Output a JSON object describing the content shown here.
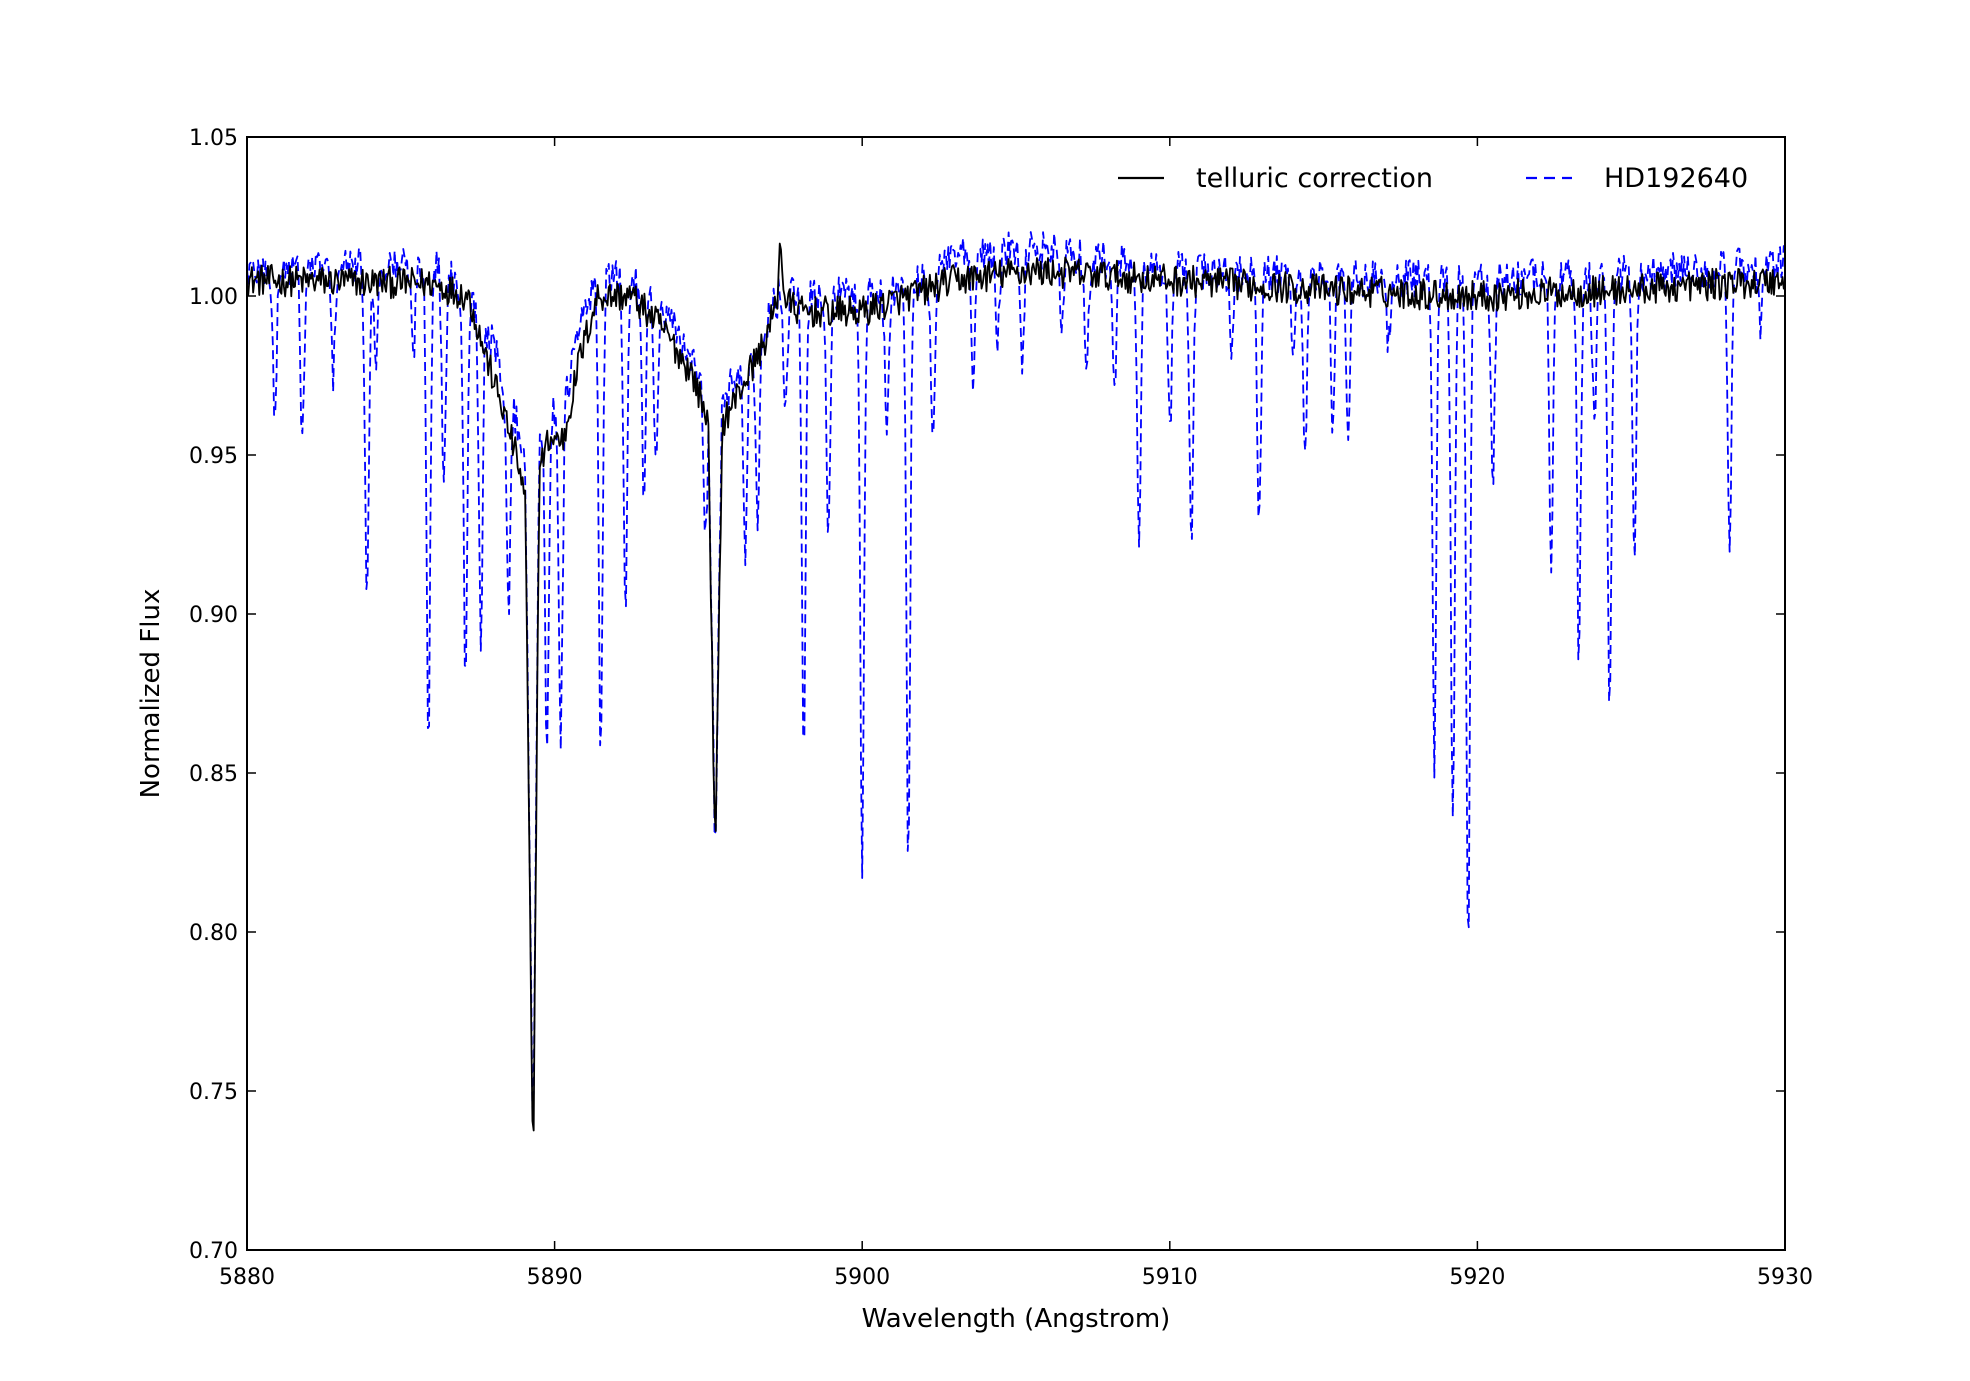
{
  "chart_data": {
    "type": "line",
    "title": "",
    "xlabel": "Wavelength (Angstrom)",
    "ylabel": "Normalized Flux",
    "xlim": [
      5880,
      5930
    ],
    "ylim": [
      0.7,
      1.05
    ],
    "xticks": [
      5880,
      5890,
      5900,
      5910,
      5920,
      5930
    ],
    "xtick_labels": [
      "5880",
      "5890",
      "5900",
      "5910",
      "5920",
      "5930"
    ],
    "yticks": [
      0.7,
      0.75,
      0.8,
      0.85,
      0.9,
      0.95,
      1.0,
      1.05
    ],
    "ytick_labels": [
      "0.70",
      "0.75",
      "0.80",
      "0.85",
      "0.90",
      "0.95",
      "1.00",
      "1.05"
    ],
    "grid": false,
    "legend_position": "top-right",
    "series": [
      {
        "name": "telluric correction",
        "color": "#000000",
        "style": "solid",
        "noise": 0.005,
        "baseline": [
          [
            5880,
            1.005
          ],
          [
            5886,
            1.004
          ],
          [
            5887.2,
            1.0
          ],
          [
            5887.8,
            0.98
          ],
          [
            5888.3,
            0.965
          ],
          [
            5888.8,
            0.948
          ],
          [
            5889.05,
            0.935
          ],
          [
            5889.3,
            0.72
          ],
          [
            5889.5,
            0.945
          ],
          [
            5889.8,
            0.955
          ],
          [
            5890.3,
            0.955
          ],
          [
            5890.8,
            0.98
          ],
          [
            5891.4,
            1.0
          ],
          [
            5892.5,
            1.0
          ],
          [
            5893.5,
            0.99
          ],
          [
            5894.5,
            0.975
          ],
          [
            5895.0,
            0.96
          ],
          [
            5895.22,
            0.82
          ],
          [
            5895.45,
            0.96
          ],
          [
            5896.0,
            0.97
          ],
          [
            5896.8,
            0.985
          ],
          [
            5897.3,
            1.0
          ],
          [
            5898.0,
            0.995
          ],
          [
            5900,
            0.995
          ],
          [
            5901.5,
            1.0
          ],
          [
            5903,
            1.005
          ],
          [
            5905.5,
            1.008
          ],
          [
            5910,
            1.005
          ],
          [
            5915,
            1.002
          ],
          [
            5920,
            1.0
          ],
          [
            5925,
            1.002
          ],
          [
            5930,
            1.005
          ]
        ],
        "peaks": [
          [
            5897.35,
            1.018
          ]
        ]
      },
      {
        "name": "HD192640",
        "color": "#0000ff",
        "style": "dashed",
        "noise": 0.006,
        "baseline": [
          [
            5880,
            1.008
          ],
          [
            5886,
            1.01
          ],
          [
            5887.2,
            1.002
          ],
          [
            5887.8,
            0.99
          ],
          [
            5888.3,
            0.975
          ],
          [
            5888.8,
            0.96
          ],
          [
            5889.05,
            0.945
          ],
          [
            5889.3,
            0.73
          ],
          [
            5889.5,
            0.955
          ],
          [
            5889.8,
            0.965
          ],
          [
            5890.3,
            0.965
          ],
          [
            5890.8,
            0.99
          ],
          [
            5891.4,
            1.005
          ],
          [
            5892.5,
            1.005
          ],
          [
            5893.5,
            0.995
          ],
          [
            5894.5,
            0.98
          ],
          [
            5895.0,
            0.965
          ],
          [
            5895.22,
            0.82
          ],
          [
            5895.45,
            0.97
          ],
          [
            5896.0,
            0.978
          ],
          [
            5896.8,
            0.99
          ],
          [
            5897.3,
            1.0
          ],
          [
            5898.0,
            1.0
          ],
          [
            5900,
            1.0
          ],
          [
            5902,
            1.005
          ],
          [
            5903,
            1.012
          ],
          [
            5905.5,
            1.015
          ],
          [
            5910,
            1.008
          ],
          [
            5915,
            1.006
          ],
          [
            5920,
            1.005
          ],
          [
            5925,
            1.007
          ],
          [
            5930,
            1.01
          ]
        ],
        "absorption_lines": [
          [
            5880.9,
            0.96
          ],
          [
            5881.8,
            0.955
          ],
          [
            5882.8,
            0.975
          ],
          [
            5883.9,
            0.9
          ],
          [
            5884.2,
            0.98
          ],
          [
            5885.4,
            0.98
          ],
          [
            5885.9,
            0.862
          ],
          [
            5886.4,
            0.94
          ],
          [
            5887.1,
            0.88
          ],
          [
            5887.6,
            0.893
          ],
          [
            5888.5,
            0.9
          ],
          [
            5889.75,
            0.855
          ],
          [
            5890.2,
            0.863
          ],
          [
            5891.5,
            0.855
          ],
          [
            5892.3,
            0.9
          ],
          [
            5892.9,
            0.94
          ],
          [
            5893.3,
            0.945
          ],
          [
            5894.9,
            0.922
          ],
          [
            5895.6,
            0.965
          ],
          [
            5896.2,
            0.915
          ],
          [
            5896.6,
            0.925
          ],
          [
            5897.5,
            0.96
          ],
          [
            5898.1,
            0.85
          ],
          [
            5898.9,
            0.925
          ],
          [
            5900.0,
            0.822
          ],
          [
            5900.8,
            0.955
          ],
          [
            5901.5,
            0.818
          ],
          [
            5902.3,
            0.952
          ],
          [
            5903.6,
            0.97
          ],
          [
            5904.4,
            0.985
          ],
          [
            5905.2,
            0.975
          ],
          [
            5906.5,
            0.99
          ],
          [
            5907.3,
            0.975
          ],
          [
            5908.2,
            0.97
          ],
          [
            5909.0,
            0.918
          ],
          [
            5910.0,
            0.955
          ],
          [
            5910.7,
            0.925
          ],
          [
            5912.0,
            0.985
          ],
          [
            5912.9,
            0.925
          ],
          [
            5914.0,
            0.985
          ],
          [
            5914.4,
            0.95
          ],
          [
            5915.3,
            0.96
          ],
          [
            5915.8,
            0.955
          ],
          [
            5917.1,
            0.985
          ],
          [
            5918.6,
            0.854
          ],
          [
            5919.2,
            0.831
          ],
          [
            5919.7,
            0.793
          ],
          [
            5920.5,
            0.94
          ],
          [
            5922.4,
            0.915
          ],
          [
            5923.3,
            0.885
          ],
          [
            5923.8,
            0.96
          ],
          [
            5924.3,
            0.867
          ],
          [
            5925.1,
            0.918
          ],
          [
            5928.2,
            0.922
          ],
          [
            5929.2,
            0.99
          ]
        ]
      }
    ]
  }
}
